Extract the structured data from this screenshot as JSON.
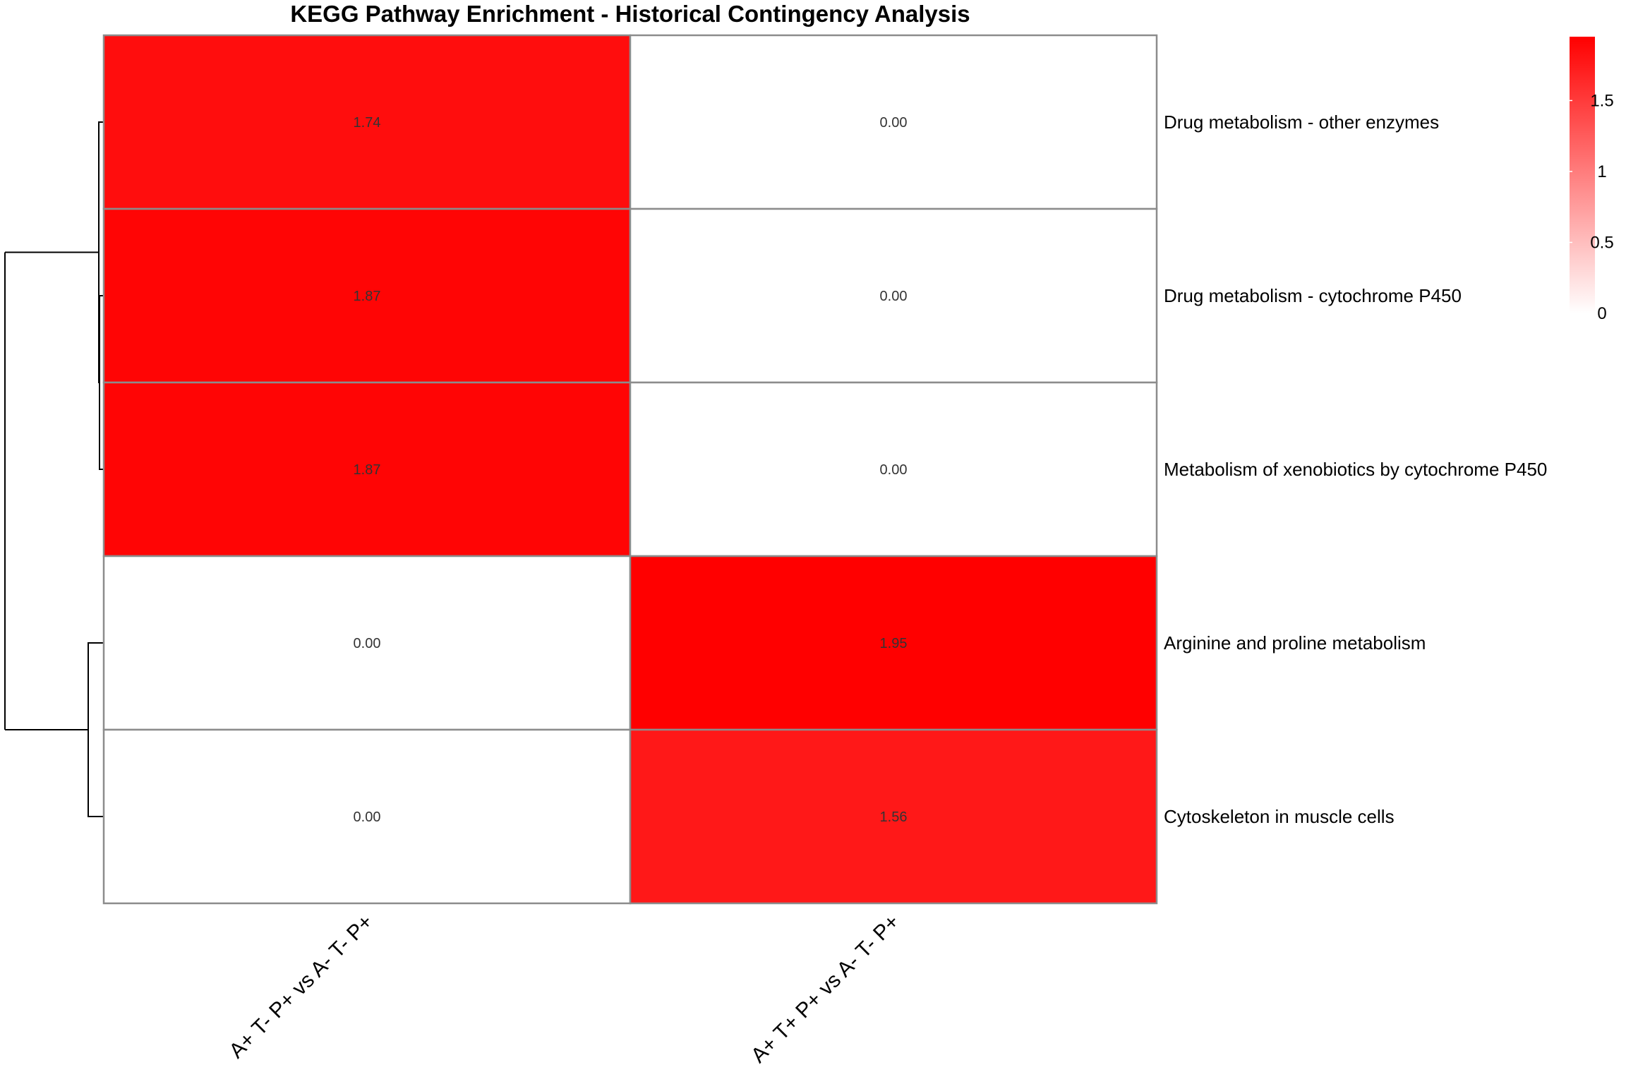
{
  "chart_data": {
    "type": "heatmap",
    "title": "KEGG Pathway Enrichment - Historical Contingency Analysis",
    "columns": [
      "A+ T- P+ vs A- T- P+",
      "A+ T+ P+ vs A- T- P+"
    ],
    "rows": [
      "Drug metabolism - other enzymes",
      "Drug metabolism - cytochrome P450",
      "Metabolism of xenobiotics by cytochrome P450",
      "Arginine and proline metabolism",
      "Cytoskeleton in muscle cells"
    ],
    "values": [
      [
        1.74,
        0.0
      ],
      [
        1.87,
        0.0
      ],
      [
        1.87,
        0.0
      ],
      [
        0.0,
        1.95
      ],
      [
        0.0,
        1.56
      ]
    ],
    "cell_labels": [
      [
        "1.74",
        "0.00"
      ],
      [
        "1.87",
        "0.00"
      ],
      [
        "1.87",
        "0.00"
      ],
      [
        "0.00",
        "1.95"
      ],
      [
        "0.00",
        "1.56"
      ]
    ],
    "color_scale": {
      "low_color": "#ffffff",
      "high_color": "#ff0000",
      "min": 0,
      "max": 1.95
    },
    "legend": {
      "placement": "top-right",
      "ticks": [
        0,
        0.5,
        1,
        1.5
      ],
      "tick_labels": [
        "0",
        "0.5",
        "1",
        "1.5"
      ]
    },
    "row_dendrogram": true,
    "xlabel": "",
    "ylabel": ""
  }
}
